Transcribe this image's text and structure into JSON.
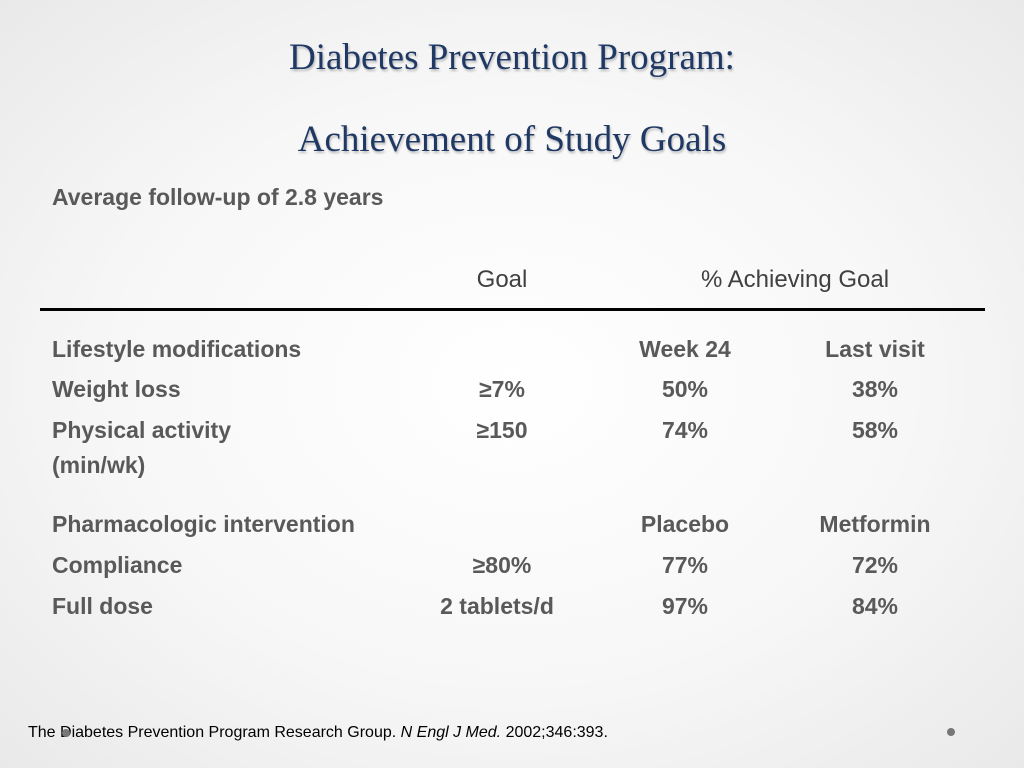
{
  "title_line1": "Diabetes Prevention Program:",
  "title_line2": "Achievement of Study Goals",
  "subtitle": "Average follow-up of 2.8 years",
  "headers": {
    "goal": "Goal",
    "achieving": "% Achieving Goal"
  },
  "lifestyle": {
    "label": "Lifestyle modifications",
    "col1": "Week 24",
    "col2": "Last visit",
    "rows": [
      {
        "label": "Weight loss",
        "goal": "≥7%",
        "v1": "50%",
        "v2": "38%"
      },
      {
        "label": "Physical activity",
        "label2": "(min/wk)",
        "goal": "≥150",
        "v1": "74%",
        "v2": "58%"
      }
    ]
  },
  "pharma": {
    "label": "Pharmacologic intervention",
    "col1": "Placebo",
    "col2": "Metformin",
    "rows": [
      {
        "label": "Compliance",
        "goal": "≥80%",
        "v1": "77%",
        "v2": "72%"
      },
      {
        "label": "Full dose",
        "goal": "2 tablets/d",
        "v1": "97%",
        "v2": "84%"
      }
    ]
  },
  "footer": {
    "text": "The Diabetes Prevention Program Research Group.",
    "journal": "N Engl J Med.",
    "citation": "2002;346:393."
  }
}
